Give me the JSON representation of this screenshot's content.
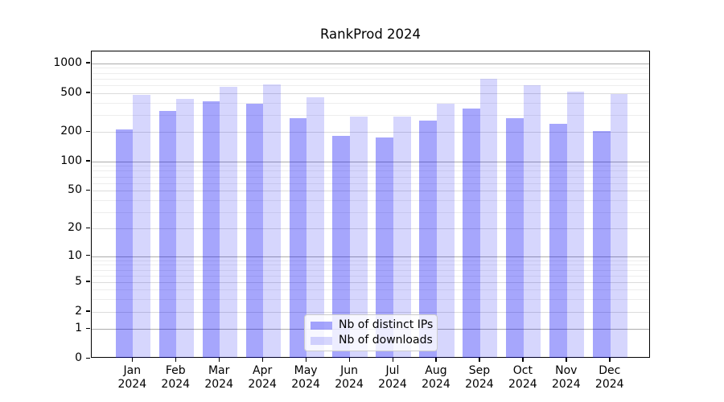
{
  "title": "RankProd 2024",
  "chart_data": {
    "type": "bar",
    "title": "RankProd 2024",
    "categories": [
      "Jan",
      "Feb",
      "Mar",
      "Apr",
      "May",
      "Jun",
      "Jul",
      "Aug",
      "Sep",
      "Oct",
      "Nov",
      "Dec"
    ],
    "x_tick_year": "2024",
    "series": [
      {
        "name": "Nb of distinct IPs",
        "color": "rgba(0,0,245,0.35)",
        "values": [
          212,
          330,
          415,
          392,
          277,
          183,
          175,
          260,
          348,
          277,
          244,
          206
        ]
      },
      {
        "name": "Nb of downloads",
        "color": "rgba(0,0,245,0.16)",
        "values": [
          481,
          438,
          583,
          610,
          453,
          290,
          288,
          390,
          700,
          598,
          515,
          487
        ]
      }
    ],
    "y_scale": "log1p",
    "ylim": [
      0,
      1324
    ],
    "y_ticks": [
      0,
      1,
      2,
      5,
      10,
      20,
      50,
      100,
      200,
      500,
      1000
    ],
    "y_major_gridlines": [
      1,
      10,
      100,
      1000
    ],
    "y_mid_gridlines": [
      2,
      5,
      20,
      50,
      200,
      500
    ],
    "y_minor_gridlines": [
      3,
      4,
      6,
      7,
      8,
      9,
      30,
      40,
      60,
      70,
      80,
      90,
      300,
      400,
      600,
      700,
      800,
      900
    ],
    "grid": true,
    "legend_position": "inside-bottom-center"
  }
}
